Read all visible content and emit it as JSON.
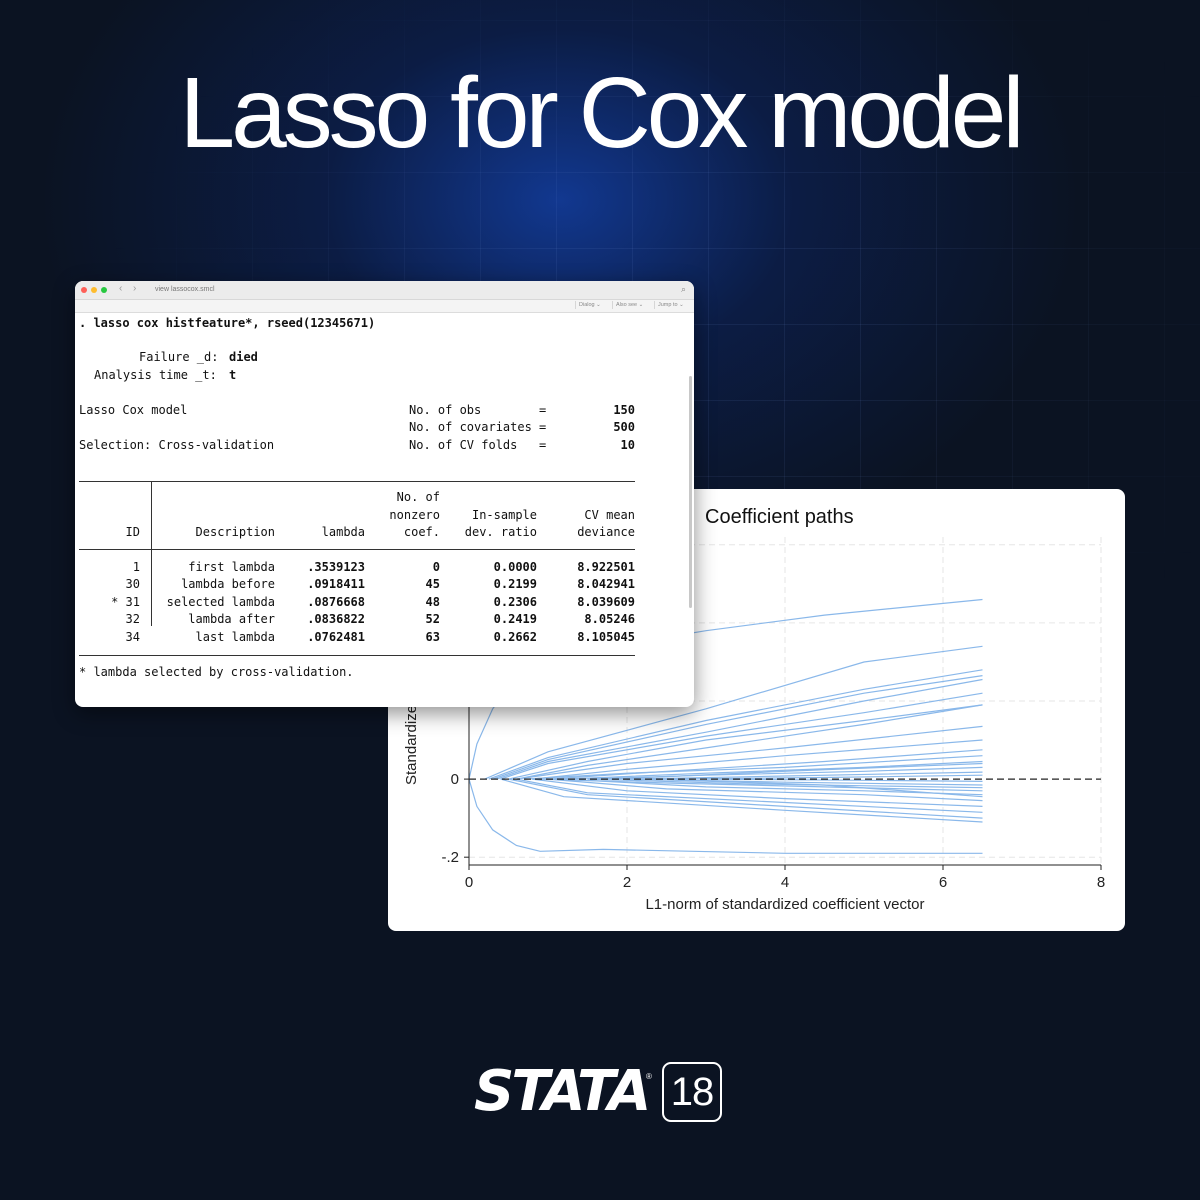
{
  "headline": "Lasso for Cox model",
  "results_window": {
    "title": "view lassocox.smcl",
    "nav_back": "‹",
    "nav_forward": "›",
    "toolbar": [
      "Dialog ⌄",
      "Also see ⌄",
      "Jump to ⌄"
    ],
    "command": ". lasso cox histfeature*, rseed(12345671)",
    "failure_label": "Failure _d:",
    "failure_value": "died",
    "analysis_label": "Analysis time _t:",
    "analysis_value": "t",
    "model_name": "Lasso Cox model",
    "selection": "Selection: Cross-validation",
    "stats": [
      {
        "label": "No. of obs        =",
        "value": "150"
      },
      {
        "label": "No. of covariates =",
        "value": "500"
      },
      {
        "label": "No. of CV folds   =",
        "value": "10"
      }
    ],
    "table": {
      "headers": {
        "id": "ID",
        "description": "Description",
        "lambda": "lambda",
        "nonzero_1": "No. of",
        "nonzero_2": "nonzero",
        "nonzero_3": "coef.",
        "devratio_1": "In-sample",
        "devratio_2": "dev. ratio",
        "cv_1": "CV mean",
        "cv_2": "deviance"
      },
      "rows": [
        {
          "id": "1",
          "description": "first lambda",
          "lambda": ".3539123",
          "nonzero": "0",
          "devratio": "0.0000",
          "cv": "8.922501"
        },
        {
          "id": "30",
          "description": "lambda before",
          "lambda": ".0918411",
          "nonzero": "45",
          "devratio": "0.2199",
          "cv": "8.042941"
        },
        {
          "id": "* 31",
          "description": "selected lambda",
          "lambda": ".0876668",
          "nonzero": "48",
          "devratio": "0.2306",
          "cv": "8.039609"
        },
        {
          "id": "32",
          "description": "lambda after",
          "lambda": ".0836822",
          "nonzero": "52",
          "devratio": "0.2419",
          "cv": "8.05246"
        },
        {
          "id": "34",
          "description": "last lambda",
          "lambda": ".0762481",
          "nonzero": "63",
          "devratio": "0.2662",
          "cv": "8.105045"
        }
      ]
    },
    "footnote": "* lambda selected by cross-validation."
  },
  "chart_data": {
    "type": "line",
    "title": "Coefficient paths",
    "xlabel": "L1-norm of standardized coefficient vector",
    "ylabel": "Standardized coefficients",
    "ylabel_visible": "Standardize",
    "xlim": [
      0,
      8
    ],
    "ylim": [
      -0.22,
      0.62
    ],
    "xticks": [
      "0",
      "2",
      "4",
      "6",
      "8"
    ],
    "yticks": [
      {
        "value": 0,
        "label": "0"
      },
      {
        "value": -0.2,
        "label": "-.2"
      }
    ],
    "grid": true,
    "reference_line_y": 0,
    "line_color": "#8ab8ea",
    "series_end_x": 6.5,
    "series": [
      {
        "values": [
          [
            0,
            0
          ],
          [
            0.1,
            0.09
          ],
          [
            0.3,
            0.18
          ],
          [
            0.6,
            0.26
          ],
          [
            1.5,
            0.33
          ],
          [
            3,
            0.38
          ],
          [
            4.5,
            0.42
          ],
          [
            6.5,
            0.46
          ]
        ]
      },
      {
        "values": [
          [
            0,
            0
          ],
          [
            0.1,
            -0.07
          ],
          [
            0.3,
            -0.13
          ],
          [
            0.6,
            -0.17
          ],
          [
            0.9,
            -0.185
          ],
          [
            1.7,
            -0.18
          ],
          [
            4,
            -0.19
          ],
          [
            6.5,
            -0.19
          ]
        ]
      },
      {
        "values": [
          [
            0.2,
            0
          ],
          [
            1,
            0.07
          ],
          [
            3,
            0.18
          ],
          [
            5,
            0.3
          ],
          [
            6.5,
            0.34
          ]
        ]
      },
      {
        "values": [
          [
            0.25,
            0
          ],
          [
            1,
            0.055
          ],
          [
            3,
            0.15
          ],
          [
            5,
            0.23
          ],
          [
            6.5,
            0.28
          ]
        ]
      },
      {
        "values": [
          [
            0.3,
            0
          ],
          [
            1,
            0.05
          ],
          [
            3,
            0.14
          ],
          [
            5,
            0.22
          ],
          [
            6.5,
            0.265
          ]
        ]
      },
      {
        "values": [
          [
            0.35,
            0
          ],
          [
            1,
            0.045
          ],
          [
            3,
            0.12
          ],
          [
            5,
            0.2
          ],
          [
            6.5,
            0.255
          ]
        ]
      },
      {
        "values": [
          [
            0.4,
            0
          ],
          [
            1,
            0.04
          ],
          [
            3,
            0.11
          ],
          [
            5,
            0.17
          ],
          [
            6.5,
            0.22
          ]
        ]
      },
      {
        "values": [
          [
            0.5,
            0
          ],
          [
            1.5,
            0.045
          ],
          [
            3,
            0.1
          ],
          [
            5,
            0.15
          ],
          [
            6.5,
            0.19
          ]
        ]
      },
      {
        "values": [
          [
            0.6,
            0
          ],
          [
            1.5,
            0.035
          ],
          [
            3,
            0.08
          ],
          [
            5,
            0.14
          ],
          [
            6.5,
            0.19
          ]
        ]
      },
      {
        "values": [
          [
            0.6,
            0
          ],
          [
            2,
            0.04
          ],
          [
            4,
            0.08
          ],
          [
            6.5,
            0.135
          ]
        ]
      },
      {
        "values": [
          [
            0.8,
            0
          ],
          [
            2,
            0.025
          ],
          [
            4,
            0.06
          ],
          [
            6.5,
            0.1
          ]
        ]
      },
      {
        "values": [
          [
            1,
            0
          ],
          [
            2.5,
            0.02
          ],
          [
            4.5,
            0.045
          ],
          [
            6.5,
            0.075
          ]
        ]
      },
      {
        "values": [
          [
            1.2,
            0
          ],
          [
            3,
            0.015
          ],
          [
            5,
            0.03
          ],
          [
            6.5,
            0.045
          ]
        ]
      },
      {
        "values": [
          [
            1.5,
            0
          ],
          [
            3,
            0.01
          ],
          [
            5,
            0.02
          ],
          [
            6.5,
            0.03
          ]
        ]
      },
      {
        "values": [
          [
            2,
            0
          ],
          [
            4,
            0.008
          ],
          [
            6.5,
            0.018
          ]
        ]
      },
      {
        "values": [
          [
            2.5,
            0
          ],
          [
            4.5,
            0.004
          ],
          [
            6.5,
            0.01
          ]
        ]
      },
      {
        "values": [
          [
            3,
            0
          ],
          [
            5,
            -0.003
          ],
          [
            6.5,
            -0.006
          ]
        ]
      },
      {
        "values": [
          [
            2,
            0
          ],
          [
            4,
            -0.008
          ],
          [
            6.5,
            -0.015
          ]
        ]
      },
      {
        "values": [
          [
            1.5,
            0
          ],
          [
            3.5,
            -0.012
          ],
          [
            6.5,
            -0.022
          ]
        ]
      },
      {
        "values": [
          [
            1.2,
            0
          ],
          [
            3,
            -0.02
          ],
          [
            5,
            -0.03
          ],
          [
            6.5,
            -0.04
          ]
        ]
      },
      {
        "values": [
          [
            1,
            0
          ],
          [
            2.5,
            -0.025
          ],
          [
            5,
            -0.04
          ],
          [
            6.5,
            -0.055
          ]
        ]
      },
      {
        "values": [
          [
            0.8,
            0
          ],
          [
            2,
            -0.03
          ],
          [
            4,
            -0.05
          ],
          [
            6.5,
            -0.07
          ]
        ]
      },
      {
        "values": [
          [
            0.6,
            0
          ],
          [
            1.5,
            -0.035
          ],
          [
            4,
            -0.06
          ],
          [
            6.5,
            -0.085
          ]
        ]
      },
      {
        "values": [
          [
            0.5,
            0
          ],
          [
            1.5,
            -0.04
          ],
          [
            4,
            -0.07
          ],
          [
            6.5,
            -0.1
          ]
        ]
      },
      {
        "values": [
          [
            0.4,
            0
          ],
          [
            1.2,
            -0.045
          ],
          [
            4,
            -0.08
          ],
          [
            6.5,
            -0.11
          ]
        ]
      },
      {
        "values": [
          [
            0.7,
            0
          ],
          [
            2,
            0.015
          ],
          [
            4,
            0.03
          ],
          [
            6.5,
            0.06
          ]
        ]
      },
      {
        "values": [
          [
            0.9,
            0
          ],
          [
            2.5,
            -0.01
          ],
          [
            4.5,
            -0.02
          ],
          [
            6.5,
            -0.03
          ]
        ]
      },
      {
        "values": [
          [
            1.8,
            0
          ],
          [
            4,
            0.02
          ],
          [
            6.5,
            0.04
          ]
        ]
      },
      {
        "values": [
          [
            2.2,
            0
          ],
          [
            4.5,
            -0.015
          ],
          [
            6.5,
            -0.045
          ]
        ]
      }
    ]
  },
  "logo": {
    "wordmark": "STATA",
    "registered": "®",
    "version": "18"
  }
}
